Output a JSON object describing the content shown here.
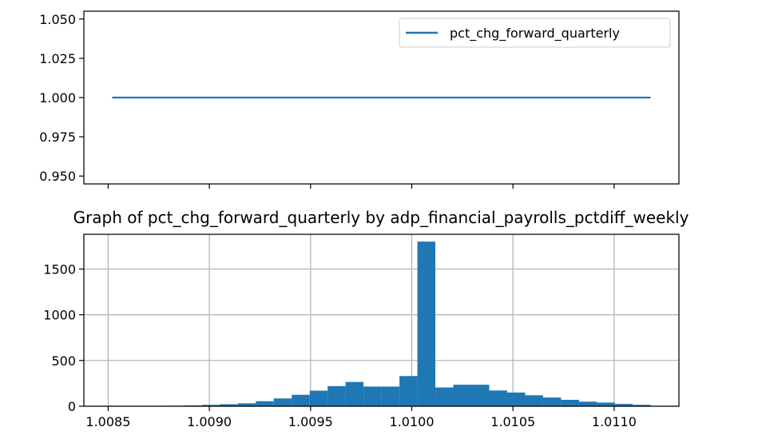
{
  "chart_data": [
    {
      "type": "line",
      "title": "",
      "xlabel": "",
      "ylabel": "",
      "legend": {
        "placement": "top-right",
        "entries": [
          "pct_chg_forward_quarterly"
        ]
      },
      "series": [
        {
          "name": "pct_chg_forward_quarterly",
          "x": [
            1.00852,
            1.01118
          ],
          "y": [
            1.0,
            1.0
          ],
          "color": "#1f77b4"
        }
      ],
      "xlim": [
        1.00838,
        1.01132
      ],
      "ylim": [
        0.945,
        1.055
      ],
      "yticks": [
        0.95,
        0.975,
        1.0,
        1.025,
        1.05
      ],
      "ytick_labels": [
        "0.950",
        "0.975",
        "1.000",
        "1.025",
        "1.050"
      ],
      "xticks": [
        1.0085,
        1.009,
        1.0095,
        1.01,
        1.0105,
        1.011
      ],
      "xtick_labels_shown": false,
      "grid": false
    },
    {
      "type": "bar",
      "title": "Graph of pct_chg_forward_quarterly by adp_financial_payrolls_pctdiff_weekly",
      "xlabel": "",
      "ylabel": "",
      "color": "#1f77b4",
      "bin_start": 1.00852,
      "bin_width": 8.87e-05,
      "counts": [
        1,
        2,
        3,
        5,
        8,
        15,
        22,
        32,
        55,
        85,
        125,
        170,
        220,
        265,
        215,
        215,
        330,
        1800,
        205,
        235,
        235,
        172,
        150,
        120,
        95,
        70,
        50,
        40,
        25,
        15
      ],
      "xlim": [
        1.00838,
        1.01132
      ],
      "ylim": [
        0,
        1880
      ],
      "yticks": [
        0,
        500,
        1000,
        1500
      ],
      "ytick_labels": [
        "0",
        "500",
        "1000",
        "1500"
      ],
      "xticks": [
        1.0085,
        1.009,
        1.0095,
        1.01,
        1.0105,
        1.011
      ],
      "xtick_labels": [
        "1.0085",
        "1.0090",
        "1.0095",
        "1.0100",
        "1.0105",
        "1.0110"
      ],
      "grid": true
    }
  ]
}
